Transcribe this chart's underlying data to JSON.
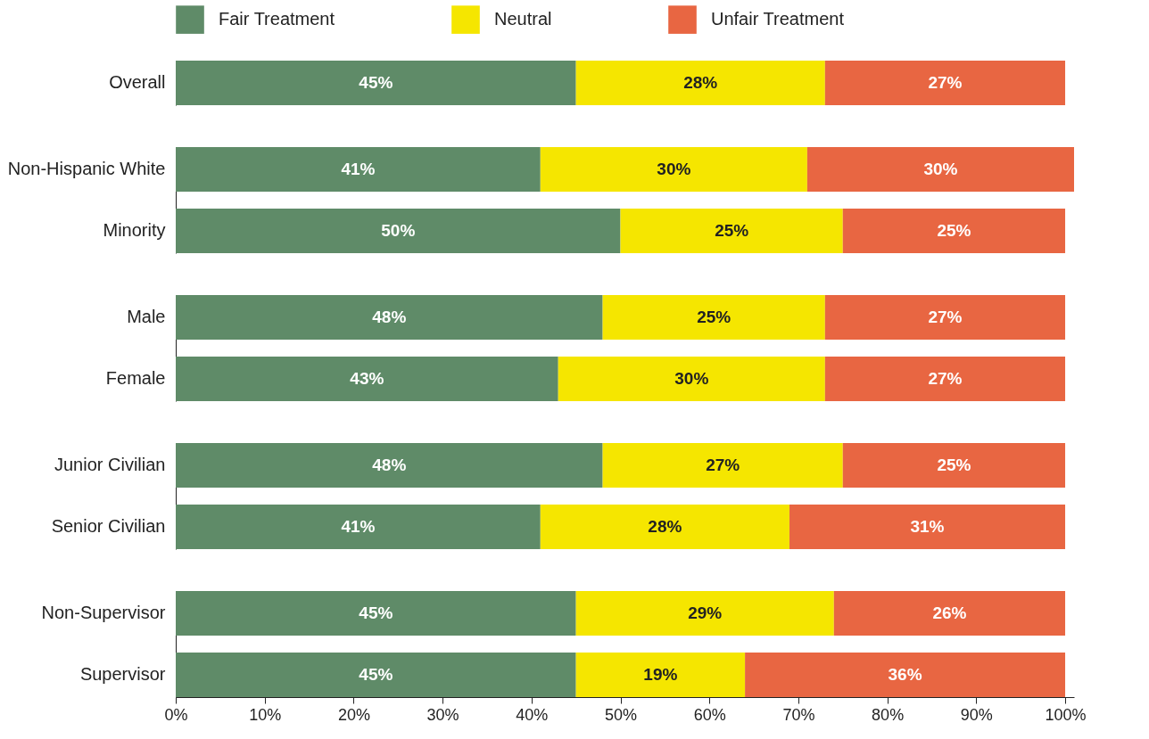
{
  "chart_data": [
    {
      "type": "bar",
      "orientation": "horizontal",
      "stacked": true,
      "legend": "top",
      "tick_labels": "y",
      "categories": [
        "Overall"
      ],
      "series": [
        {
          "name": "Fair Treatment",
          "color": "#5f8b68",
          "values": [
            45
          ],
          "value_labels": [
            "45%"
          ]
        },
        {
          "name": "Neutral",
          "color": "#f5e600",
          "values": [
            28
          ],
          "value_labels": [
            "28%"
          ]
        },
        {
          "name": "Unfair Treatment",
          "color": "#e86642",
          "values": [
            27
          ],
          "value_labels": [
            "27%"
          ]
        }
      ]
    },
    {
      "type": "bar",
      "orientation": "horizontal",
      "stacked": true,
      "tick_labels": "y",
      "categories": [
        "Non-Hispanic White",
        "Minority"
      ],
      "series": [
        {
          "color": "#5f8b68",
          "values": [
            41,
            50
          ],
          "value_labels": [
            "41%",
            "50%"
          ]
        },
        {
          "color": "#f5e600",
          "values": [
            30,
            25
          ],
          "value_labels": [
            "30%",
            "25%"
          ]
        },
        {
          "color": "#e86642",
          "values": [
            30,
            25
          ],
          "value_labels": [
            "30%",
            "25%"
          ]
        }
      ]
    },
    {
      "type": "bar",
      "orientation": "horizontal",
      "stacked": true,
      "tick_labels": "y",
      "categories": [
        "Male",
        "Female"
      ],
      "series": [
        {
          "color": "#5f8b68",
          "values": [
            48,
            43
          ],
          "value_labels": [
            "48%",
            "43%"
          ]
        },
        {
          "color": "#f5e600",
          "values": [
            25,
            30
          ],
          "value_labels": [
            "25%",
            "30%"
          ]
        },
        {
          "color": "#e86642",
          "values": [
            27,
            27
          ],
          "value_labels": [
            "27%",
            "27%"
          ]
        }
      ]
    },
    {
      "type": "bar",
      "orientation": "horizontal",
      "stacked": true,
      "tick_labels": "y",
      "categories": [
        "Junior Civilian",
        "Senior Civilian"
      ],
      "series": [
        {
          "color": "#5f8b68",
          "values": [
            48,
            41
          ],
          "value_labels": [
            "48%",
            "41%"
          ]
        },
        {
          "color": "#f5e600",
          "values": [
            27,
            28
          ],
          "value_labels": [
            "27%",
            "28%"
          ]
        },
        {
          "color": "#e86642",
          "values": [
            25,
            31
          ],
          "value_labels": [
            "25%",
            "31%"
          ]
        }
      ]
    },
    {
      "type": "bar",
      "orientation": "horizontal",
      "stacked": true,
      "categories": [
        "Non-Supervisor",
        "Supervisor"
      ],
      "xlim": [
        0,
        101
      ],
      "xticks": [
        {
          "value": 0,
          "label": "0%"
        },
        {
          "value": 10,
          "label": "10%"
        },
        {
          "value": 20,
          "label": "20%"
        },
        {
          "value": 30,
          "label": "30%"
        },
        {
          "value": 40,
          "label": "40%"
        },
        {
          "value": 50,
          "label": "50%"
        },
        {
          "value": 60,
          "label": "60%"
        },
        {
          "value": 70,
          "label": "70%"
        },
        {
          "value": 80,
          "label": "80%"
        },
        {
          "value": 90,
          "label": "90%"
        },
        {
          "value": 100,
          "label": "100%"
        }
      ],
      "series": [
        {
          "color": "#5f8b68",
          "values": [
            45,
            45
          ],
          "value_labels": [
            "45%",
            "45%"
          ]
        },
        {
          "color": "#f5e600",
          "values": [
            29,
            19
          ],
          "value_labels": [
            "29%",
            "19%"
          ]
        },
        {
          "color": "#e86642",
          "values": [
            26,
            36
          ],
          "value_labels": [
            "26%",
            "36%"
          ]
        }
      ]
    }
  ]
}
